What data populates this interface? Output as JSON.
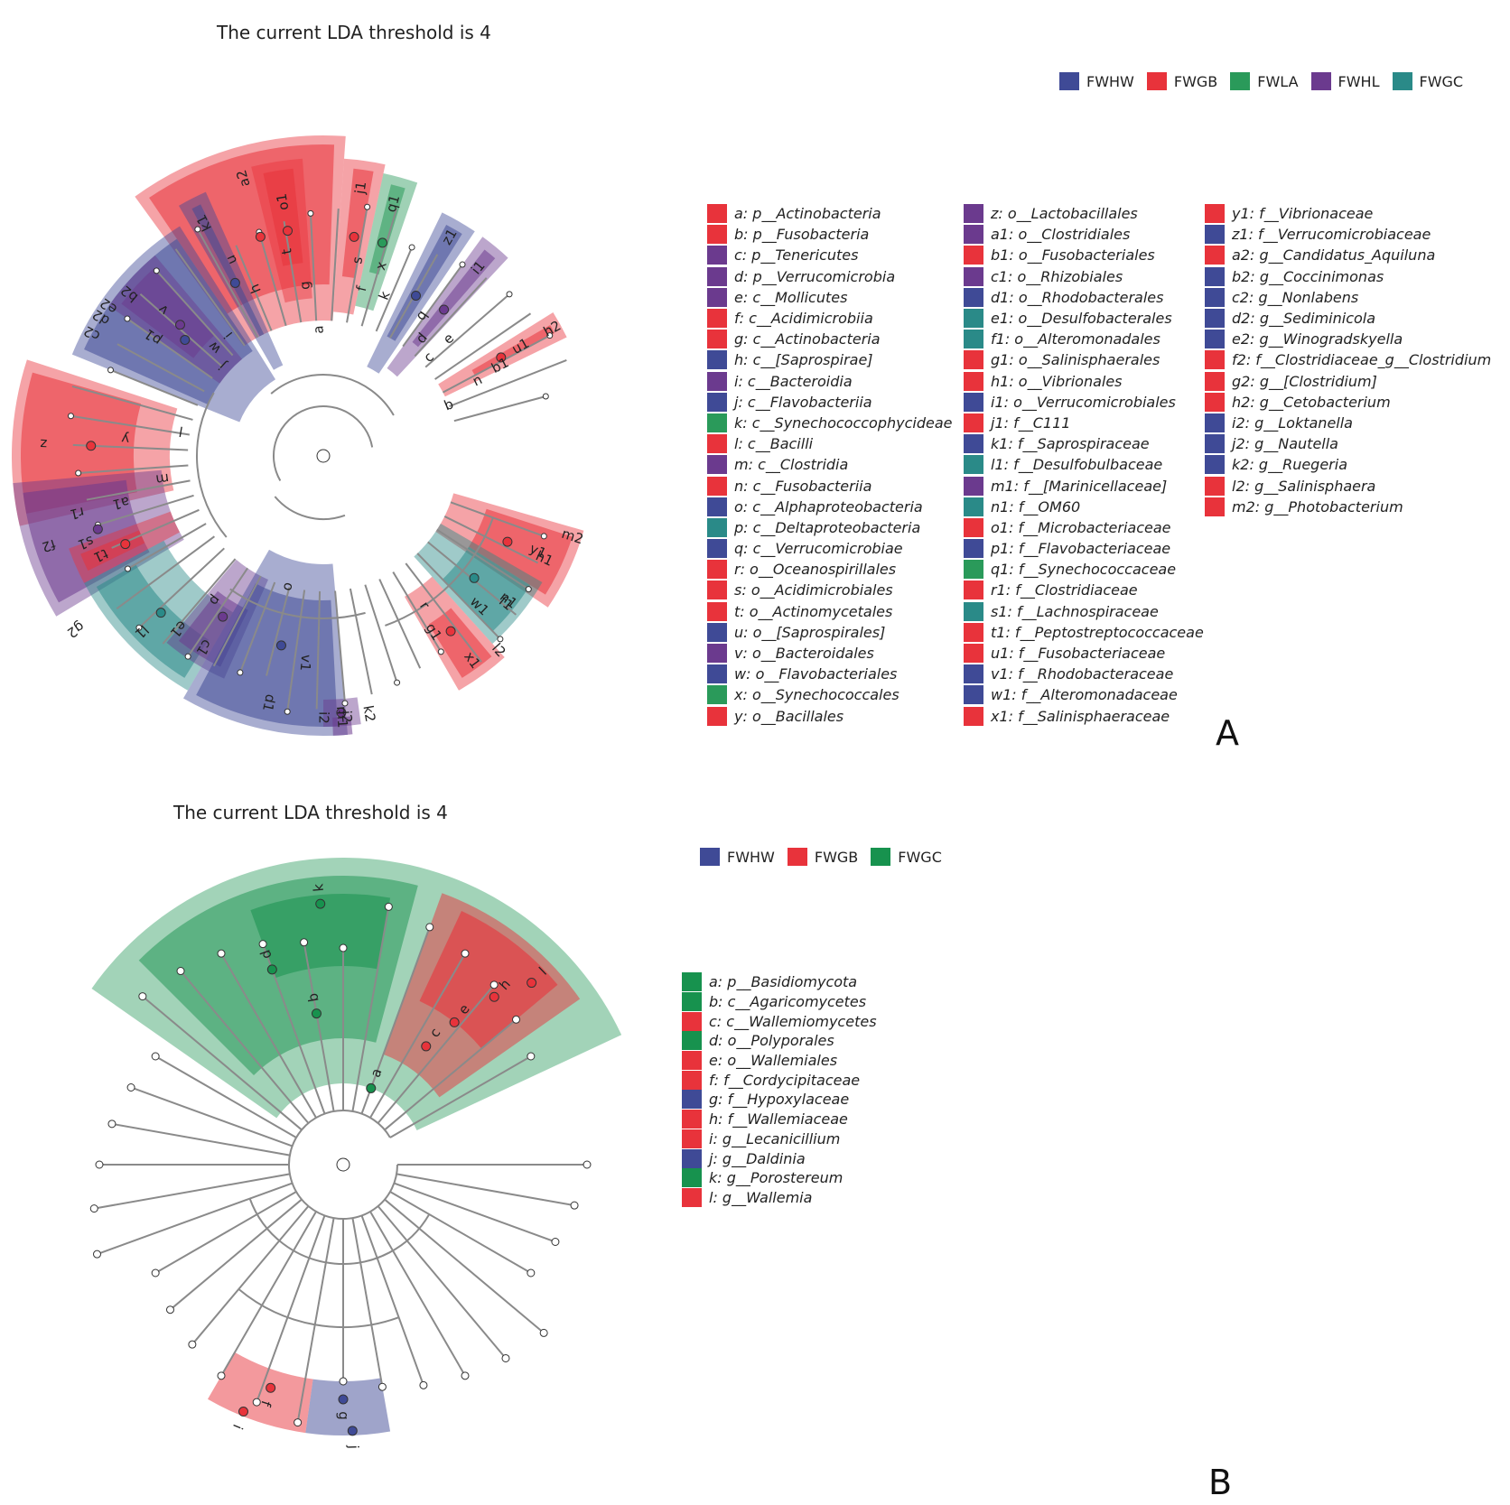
{
  "colors": {
    "FWHW": "#3f4a96",
    "FWGB": "#e8333b",
    "FWLA": "#2a9a5a",
    "FWHL": "#6b3a8e",
    "FWGC": "#2a8a88",
    "FWGC_B": "#17924e"
  },
  "panel_a": {
    "title": "The current LDA threshold is 4",
    "letter": "A",
    "legend": [
      {
        "name": "FWHW",
        "color": "#3f4a96"
      },
      {
        "name": "FWGB",
        "color": "#e8333b"
      },
      {
        "name": "FWLA",
        "color": "#2a9a5a"
      },
      {
        "name": "FWHL",
        "color": "#6b3a8e"
      },
      {
        "name": "FWGC",
        "color": "#2a8a88"
      }
    ],
    "key_columns": [
      [
        {
          "text": "a: p__Actinobacteria",
          "color": "#e8333b"
        },
        {
          "text": "b: p__Fusobacteria",
          "color": "#e8333b"
        },
        {
          "text": "c: p__Tenericutes",
          "color": "#6b3a8e"
        },
        {
          "text": "d: p__Verrucomicrobia",
          "color": "#6b3a8e"
        },
        {
          "text": "e: c__Mollicutes",
          "color": "#6b3a8e"
        },
        {
          "text": "f: c__Acidimicrobiia",
          "color": "#e8333b"
        },
        {
          "text": "g: c__Actinobacteria",
          "color": "#e8333b"
        },
        {
          "text": "h: c__[Saprospirae]",
          "color": "#3f4a96"
        },
        {
          "text": "i: c__Bacteroidia",
          "color": "#6b3a8e"
        },
        {
          "text": "j: c__Flavobacteriia",
          "color": "#3f4a96"
        },
        {
          "text": "k: c__Synechococcophycideae",
          "color": "#2a9a5a"
        },
        {
          "text": "l: c__Bacilli",
          "color": "#e8333b"
        },
        {
          "text": "m: c__Clostridia",
          "color": "#6b3a8e"
        },
        {
          "text": "n: c__Fusobacteriia",
          "color": "#e8333b"
        },
        {
          "text": "o: c__Alphaproteobacteria",
          "color": "#3f4a96"
        },
        {
          "text": "p: c__Deltaproteobacteria",
          "color": "#2a8a88"
        },
        {
          "text": "q: c__Verrucomicrobiae",
          "color": "#3f4a96"
        },
        {
          "text": "r: o__Oceanospirillales",
          "color": "#e8333b"
        },
        {
          "text": "s: o__Acidimicrobiales",
          "color": "#e8333b"
        },
        {
          "text": "t: o__Actinomycetales",
          "color": "#e8333b"
        },
        {
          "text": "u: o__[Saprospirales]",
          "color": "#3f4a96"
        },
        {
          "text": "v: o__Bacteroidales",
          "color": "#6b3a8e"
        },
        {
          "text": "w: o__Flavobacteriales",
          "color": "#3f4a96"
        },
        {
          "text": "x: o__Synechococcales",
          "color": "#2a9a5a"
        },
        {
          "text": "y: o__Bacillales",
          "color": "#e8333b"
        }
      ],
      [
        {
          "text": "z: o__Lactobacillales",
          "color": "#6b3a8e"
        },
        {
          "text": "a1: o__Clostridiales",
          "color": "#6b3a8e"
        },
        {
          "text": "b1: o__Fusobacteriales",
          "color": "#e8333b"
        },
        {
          "text": "c1: o__Rhizobiales",
          "color": "#6b3a8e"
        },
        {
          "text": "d1: o__Rhodobacterales",
          "color": "#3f4a96"
        },
        {
          "text": "e1: o__Desulfobacterales",
          "color": "#2a8a88"
        },
        {
          "text": "f1: o__Alteromonadales",
          "color": "#2a8a88"
        },
        {
          "text": "g1: o__Salinisphaerales",
          "color": "#e8333b"
        },
        {
          "text": "h1: o__Vibrionales",
          "color": "#e8333b"
        },
        {
          "text": "i1: o__Verrucomicrobiales",
          "color": "#3f4a96"
        },
        {
          "text": "j1: f__C111",
          "color": "#e8333b"
        },
        {
          "text": "k1: f__Saprospiraceae",
          "color": "#3f4a96"
        },
        {
          "text": "l1: f__Desulfobulbaceae",
          "color": "#2a8a88"
        },
        {
          "text": "m1: f__[Marinicellaceae]",
          "color": "#6b3a8e"
        },
        {
          "text": "n1: f__OM60",
          "color": "#2a8a88"
        },
        {
          "text": "o1: f__Microbacteriaceae",
          "color": "#e8333b"
        },
        {
          "text": "p1: f__Flavobacteriaceae",
          "color": "#3f4a96"
        },
        {
          "text": "q1: f__Synechococcaceae",
          "color": "#2a9a5a"
        },
        {
          "text": "r1: f__Clostridiaceae",
          "color": "#e8333b"
        },
        {
          "text": "s1: f__Lachnospiraceae",
          "color": "#2a8a88"
        },
        {
          "text": "t1: f__Peptostreptococcaceae",
          "color": "#e8333b"
        },
        {
          "text": "u1: f__Fusobacteriaceae",
          "color": "#e8333b"
        },
        {
          "text": "v1: f__Rhodobacteraceae",
          "color": "#3f4a96"
        },
        {
          "text": "w1: f__Alteromonadaceae",
          "color": "#3f4a96"
        },
        {
          "text": "x1: f__Salinisphaeraceae",
          "color": "#e8333b"
        }
      ],
      [
        {
          "text": "y1: f__Vibrionaceae",
          "color": "#e8333b"
        },
        {
          "text": "z1: f__Verrucomicrobiaceae",
          "color": "#3f4a96"
        },
        {
          "text": "a2: g__Candidatus_Aquiluna",
          "color": "#e8333b"
        },
        {
          "text": "b2: g__Coccinimonas",
          "color": "#3f4a96"
        },
        {
          "text": "c2: g__Nonlabens",
          "color": "#3f4a96"
        },
        {
          "text": "d2: g__Sediminicola",
          "color": "#3f4a96"
        },
        {
          "text": "e2: g__Winogradskyella",
          "color": "#3f4a96"
        },
        {
          "text": "f2: f__Clostridiaceae_g__Clostridium",
          "color": "#e8333b"
        },
        {
          "text": "g2: g__[Clostridium]",
          "color": "#e8333b"
        },
        {
          "text": "h2: g__Cetobacterium",
          "color": "#e8333b"
        },
        {
          "text": "i2: g__Loktanella",
          "color": "#3f4a96"
        },
        {
          "text": "j2: g__Nautella",
          "color": "#3f4a96"
        },
        {
          "text": "k2: g__Ruegeria",
          "color": "#3f4a96"
        },
        {
          "text": "l2: g__Salinisphaera",
          "color": "#e8333b"
        },
        {
          "text": "m2: g__Photobacterium",
          "color": "#e8333b"
        }
      ]
    ],
    "clade_labels": [
      "a2",
      "o1",
      "t",
      "g",
      "a",
      "k1",
      "u",
      "h",
      "j1",
      "s",
      "f",
      "q1",
      "x",
      "k",
      "z1",
      "i1",
      "q",
      "d",
      "c",
      "e",
      "h2",
      "u1",
      "b1",
      "n",
      "b",
      "b2",
      "c2",
      "d2",
      "e2",
      "p1",
      "w",
      "v",
      "i",
      "j",
      "z",
      "l",
      "y",
      "f2",
      "r1",
      "s1",
      "a1",
      "m",
      "t1",
      "g2",
      "l1",
      "e1",
      "p",
      "c1",
      "o",
      "d1",
      "v1",
      "i2",
      "j2",
      "k2",
      "m1",
      "g1",
      "r",
      "x1",
      "l2",
      "h1",
      "y1",
      "m2",
      "f1",
      "n1",
      "w1"
    ]
  },
  "panel_b": {
    "title": "The current LDA threshold is 4",
    "letter": "B",
    "legend": [
      {
        "name": "FWHW",
        "color": "#3f4a96"
      },
      {
        "name": "FWGB",
        "color": "#e8333b"
      },
      {
        "name": "FWGC",
        "color": "#17924e"
      }
    ],
    "key": [
      {
        "text": "a: p__Basidiomycota",
        "color": "#17924e"
      },
      {
        "text": "b: c__Agaricomycetes",
        "color": "#17924e"
      },
      {
        "text": "c: c__Wallemiomycetes",
        "color": "#e8333b"
      },
      {
        "text": "d: o__Polyporales",
        "color": "#17924e"
      },
      {
        "text": "e: o__Wallemiales",
        "color": "#e8333b"
      },
      {
        "text": "f: f__Cordycipitaceae",
        "color": "#e8333b"
      },
      {
        "text": "g: f__Hypoxylaceae",
        "color": "#3f4a96"
      },
      {
        "text": "h: f__Wallemiaceae",
        "color": "#e8333b"
      },
      {
        "text": "i: g__Lecanicillium",
        "color": "#e8333b"
      },
      {
        "text": "j: g__Daldinia",
        "color": "#3f4a96"
      },
      {
        "text": "k: g__Porostereum",
        "color": "#17924e"
      },
      {
        "text": "l: g__Wallemia",
        "color": "#e8333b"
      }
    ],
    "clade_labels": [
      "a",
      "b",
      "c",
      "d",
      "e",
      "f",
      "g",
      "h",
      "i",
      "j",
      "k",
      "l"
    ]
  }
}
